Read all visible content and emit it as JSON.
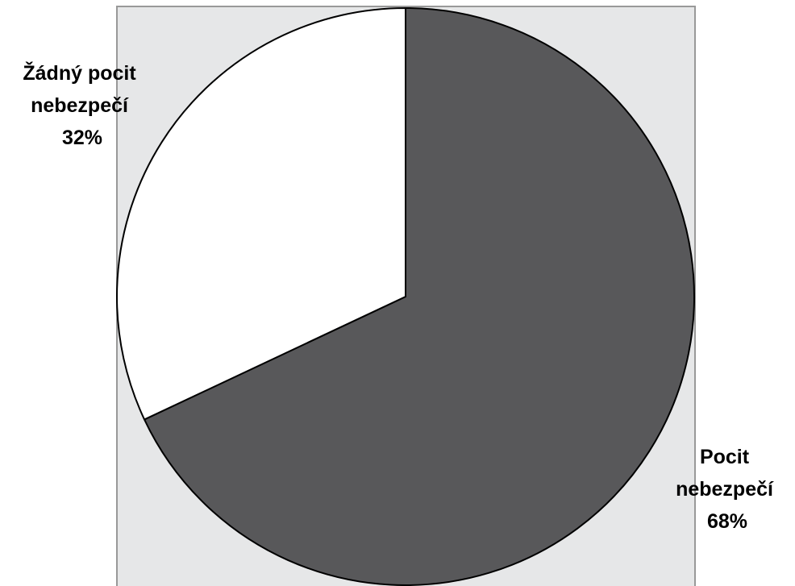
{
  "chart_data": {
    "type": "pie",
    "title": "",
    "slices": [
      {
        "label_lines": [
          "Pocit",
          "nebezpečí"
        ],
        "percent_label": "68%",
        "value": 68,
        "color": "#58585a"
      },
      {
        "label_lines": [
          "Žádný pocit",
          "nebezpečí"
        ],
        "percent_label": "32%",
        "value": 32,
        "color": "#ffffff"
      }
    ],
    "start": "12 o'clock",
    "direction": "clockwise",
    "legend": "none",
    "plot_area_color": "#e6e7e8",
    "plot_area_border_color": "#999999",
    "label_color": "#000000"
  }
}
